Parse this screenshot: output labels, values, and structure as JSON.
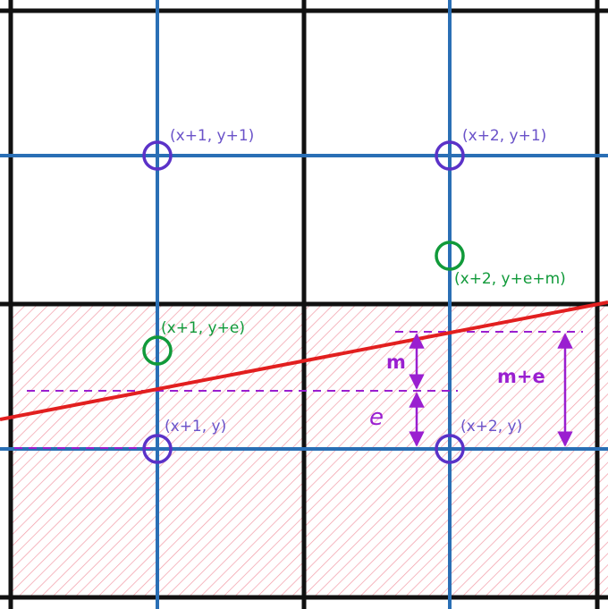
{
  "colors": {
    "grid": "#111111",
    "pixel_centers": "#2a6fb5",
    "line": "#e21f1f",
    "candidate": "#5b32c8",
    "midpoint": "#119a3a",
    "measure": "#9a1fd0",
    "hatch": "#f29aa6"
  },
  "points": {
    "p1": {
      "label": "(x+1, y+1)",
      "icon": "circle-marker"
    },
    "p2": {
      "label": "(x+2, y+1)",
      "icon": "circle-marker"
    },
    "p3": {
      "label": "(x+1, y)",
      "icon": "circle-marker"
    },
    "p4": {
      "label": "(x+2, y)",
      "icon": "circle-marker"
    },
    "g1": {
      "label": "(x+1, y+e)",
      "icon": "circle-marker"
    },
    "g2": {
      "label": "(x+2, y+e+m)",
      "icon": "circle-marker"
    }
  },
  "measures": {
    "m": "m",
    "e": "e",
    "me": "m+e"
  }
}
